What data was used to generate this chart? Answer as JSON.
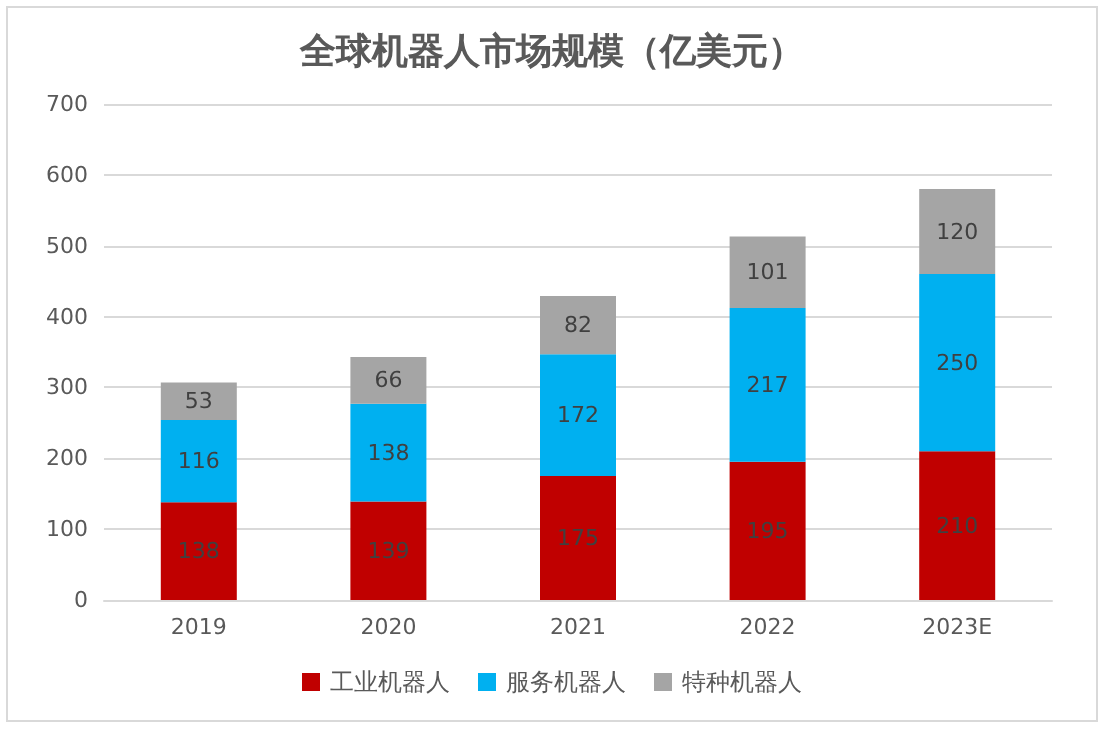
{
  "chart_data": {
    "type": "bar",
    "title": "全球机器人市场规模（亿美元）",
    "categories": [
      "2019",
      "2020",
      "2021",
      "2022",
      "2023E"
    ],
    "stacked": true,
    "data_labels": true,
    "grid": "y",
    "legend": "bottom",
    "ylim": [
      0,
      700
    ],
    "yticks": [
      0,
      100,
      200,
      300,
      400,
      500,
      600,
      700
    ],
    "series": [
      {
        "name": "工业机器人",
        "color": "#c00000",
        "values": [
          138,
          139,
          175,
          195,
          210
        ]
      },
      {
        "name": "服务机器人",
        "color": "#00b0f0",
        "values": [
          116,
          138,
          172,
          217,
          250
        ]
      },
      {
        "name": "特种机器人",
        "color": "#a5a5a5",
        "values": [
          53,
          66,
          82,
          101,
          120
        ]
      }
    ]
  }
}
